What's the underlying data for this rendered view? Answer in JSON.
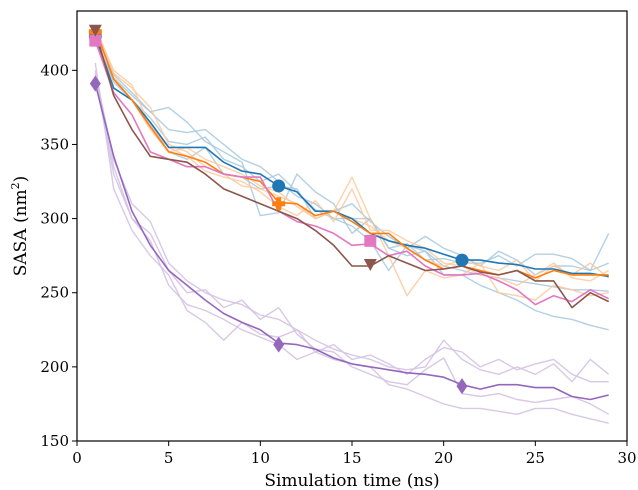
{
  "chart_data": {
    "type": "line",
    "title": "",
    "xlabel": "Simulation time (ns)",
    "ylabel_main": "SASA (nm",
    "ylabel_sup": "2",
    "ylabel_close": ")",
    "xlim": [
      0,
      30
    ],
    "ylim": [
      150,
      440
    ],
    "xticks": [
      0,
      5,
      10,
      15,
      20,
      25,
      30
    ],
    "yticks": [
      150,
      200,
      250,
      300,
      350,
      400
    ],
    "grid": false,
    "legend": "none",
    "x": [
      1,
      2,
      3,
      4,
      5,
      6,
      7,
      8,
      9,
      10,
      11,
      12,
      13,
      14,
      15,
      16,
      17,
      18,
      19,
      20,
      21,
      22,
      23,
      24,
      25,
      26,
      27,
      28,
      29
    ],
    "series": [
      {
        "color": "#a6c8e0",
        "opacity": 0.85,
        "values": [
          425,
          397,
          385,
          372,
          375,
          365,
          352,
          345,
          338,
          302,
          304,
          330,
          318,
          310,
          290,
          300,
          280,
          275,
          278,
          268,
          265,
          262,
          260,
          258,
          256,
          254,
          252,
          252,
          251
        ]
      },
      {
        "color": "#a6c8e0",
        "opacity": 0.85,
        "values": [
          423,
          392,
          380,
          364,
          345,
          340,
          348,
          330,
          328,
          320,
          322,
          320,
          300,
          305,
          310,
          298,
          288,
          280,
          288,
          280,
          275,
          268,
          278,
          272,
          262,
          268,
          268,
          265,
          290
        ]
      },
      {
        "color": "#a6c8e0",
        "opacity": 0.85,
        "values": [
          420,
          388,
          380,
          368,
          352,
          350,
          355,
          340,
          335,
          325,
          330,
          318,
          306,
          300,
          295,
          285,
          265,
          282,
          278,
          262,
          262,
          255,
          250,
          245,
          238,
          234,
          232,
          228,
          225
        ]
      },
      {
        "color": "#a6c8e0",
        "opacity": 0.85,
        "values": [
          418,
          395,
          383,
          372,
          360,
          358,
          360,
          350,
          340,
          335,
          325,
          315,
          310,
          300,
          300,
          300,
          280,
          283,
          272,
          273,
          270,
          270,
          275,
          268,
          276,
          276,
          273,
          265,
          270
        ]
      },
      {
        "color": "#ffc89a",
        "opacity": 0.85,
        "values": [
          430,
          398,
          388,
          375,
          350,
          345,
          335,
          330,
          322,
          320,
          315,
          310,
          300,
          305,
          328,
          300,
          275,
          248,
          265,
          260,
          262,
          270,
          250,
          248,
          245,
          255,
          252,
          248,
          250
        ]
      },
      {
        "color": "#ffc89a",
        "opacity": 0.85,
        "values": [
          428,
          400,
          390,
          362,
          348,
          342,
          332,
          328,
          325,
          318,
          308,
          302,
          312,
          298,
          320,
          292,
          292,
          285,
          280,
          270,
          268,
          262,
          260,
          255,
          262,
          270,
          260,
          258,
          265
        ]
      },
      {
        "color": "#ffc89a",
        "opacity": 0.85,
        "values": [
          426,
          395,
          380,
          360,
          345,
          348,
          340,
          335,
          330,
          322,
          318,
          308,
          300,
          305,
          300,
          295,
          285,
          280,
          272,
          268,
          272,
          268,
          265,
          272,
          258,
          268,
          262,
          270,
          260
        ]
      },
      {
        "color": "#d4c2e3",
        "opacity": 0.9,
        "values": [
          405,
          320,
          292,
          275,
          262,
          238,
          230,
          218,
          230,
          222,
          220,
          225,
          210,
          215,
          205,
          208,
          202,
          195,
          205,
          213,
          210,
          200,
          205,
          198,
          202,
          205,
          195,
          190,
          190
        ]
      },
      {
        "color": "#d4c2e3",
        "opacity": 0.9,
        "values": [
          400,
          335,
          300,
          285,
          255,
          242,
          238,
          232,
          225,
          220,
          215,
          205,
          210,
          205,
          202,
          200,
          188,
          185,
          180,
          175,
          172,
          172,
          170,
          168,
          172,
          172,
          168,
          165,
          162
        ]
      },
      {
        "color": "#d4c2e3",
        "opacity": 0.9,
        "values": [
          395,
          330,
          300,
          290,
          265,
          250,
          252,
          240,
          245,
          232,
          240,
          222,
          212,
          210,
          200,
          195,
          190,
          188,
          198,
          206,
          182,
          180,
          182,
          178,
          176,
          178,
          180,
          175,
          168
        ]
      },
      {
        "color": "#d4c2e3",
        "opacity": 0.9,
        "values": [
          398,
          340,
          310,
          298,
          270,
          258,
          250,
          245,
          242,
          235,
          232,
          225,
          218,
          212,
          208,
          205,
          200,
          198,
          200,
          218,
          205,
          198,
          195,
          200,
          195,
          202,
          190,
          205,
          195
        ]
      },
      {
        "name": "",
        "color": "#1f77b4",
        "opacity": 1,
        "values": [
          423,
          388,
          380,
          365,
          348,
          348,
          348,
          338,
          332,
          330,
          322,
          318,
          305,
          305,
          300,
          290,
          285,
          282,
          280,
          276,
          272,
          272,
          270,
          269,
          266,
          266,
          263,
          263,
          261
        ]
      },
      {
        "name": "",
        "color": "#ff7f0e",
        "opacity": 1,
        "values": [
          428,
          394,
          380,
          362,
          345,
          342,
          338,
          330,
          328,
          325,
          311,
          310,
          302,
          305,
          298,
          290,
          290,
          280,
          272,
          266,
          268,
          265,
          262,
          265,
          260,
          265,
          262,
          262,
          262
        ]
      },
      {
        "name": "",
        "color": "#e377c2",
        "opacity": 1,
        "values": [
          420,
          385,
          370,
          345,
          340,
          335,
          335,
          330,
          328,
          328,
          305,
          298,
          295,
          290,
          282,
          283,
          275,
          278,
          268,
          262,
          262,
          263,
          258,
          252,
          242,
          248,
          244,
          252,
          246
        ]
      },
      {
        "name": "",
        "color": "#8c564b",
        "opacity": 1,
        "values": [
          427,
          383,
          360,
          342,
          340,
          338,
          330,
          320,
          315,
          310,
          305,
          300,
          292,
          282,
          268,
          268,
          275,
          270,
          265,
          266,
          268,
          264,
          262,
          265,
          258,
          258,
          240,
          250,
          244
        ]
      },
      {
        "name": "",
        "color": "#9467bd",
        "opacity": 1,
        "values": [
          391,
          342,
          305,
          282,
          265,
          255,
          245,
          236,
          230,
          225,
          216,
          215,
          212,
          206,
          202,
          200,
          198,
          196,
          195,
          193,
          188,
          185,
          188,
          188,
          186,
          186,
          180,
          178,
          181
        ]
      }
    ],
    "markers": [
      {
        "shape": "circle",
        "color": "#1f77b4",
        "points": [
          [
            1,
            423
          ],
          [
            11,
            322
          ],
          [
            21,
            272
          ]
        ]
      },
      {
        "shape": "plus",
        "color": "#ff7f0e",
        "points": [
          [
            1,
            426
          ],
          [
            11,
            310
          ]
        ]
      },
      {
        "shape": "square",
        "color": "#e377c2",
        "points": [
          [
            1,
            420
          ],
          [
            16,
            285
          ]
        ]
      },
      {
        "shape": "triangle-down",
        "color": "#8c564b",
        "points": [
          [
            1,
            427
          ],
          [
            16,
            269
          ]
        ]
      },
      {
        "shape": "diamond",
        "color": "#9467bd",
        "points": [
          [
            1,
            391
          ],
          [
            11,
            215
          ],
          [
            21,
            187
          ]
        ]
      }
    ]
  }
}
